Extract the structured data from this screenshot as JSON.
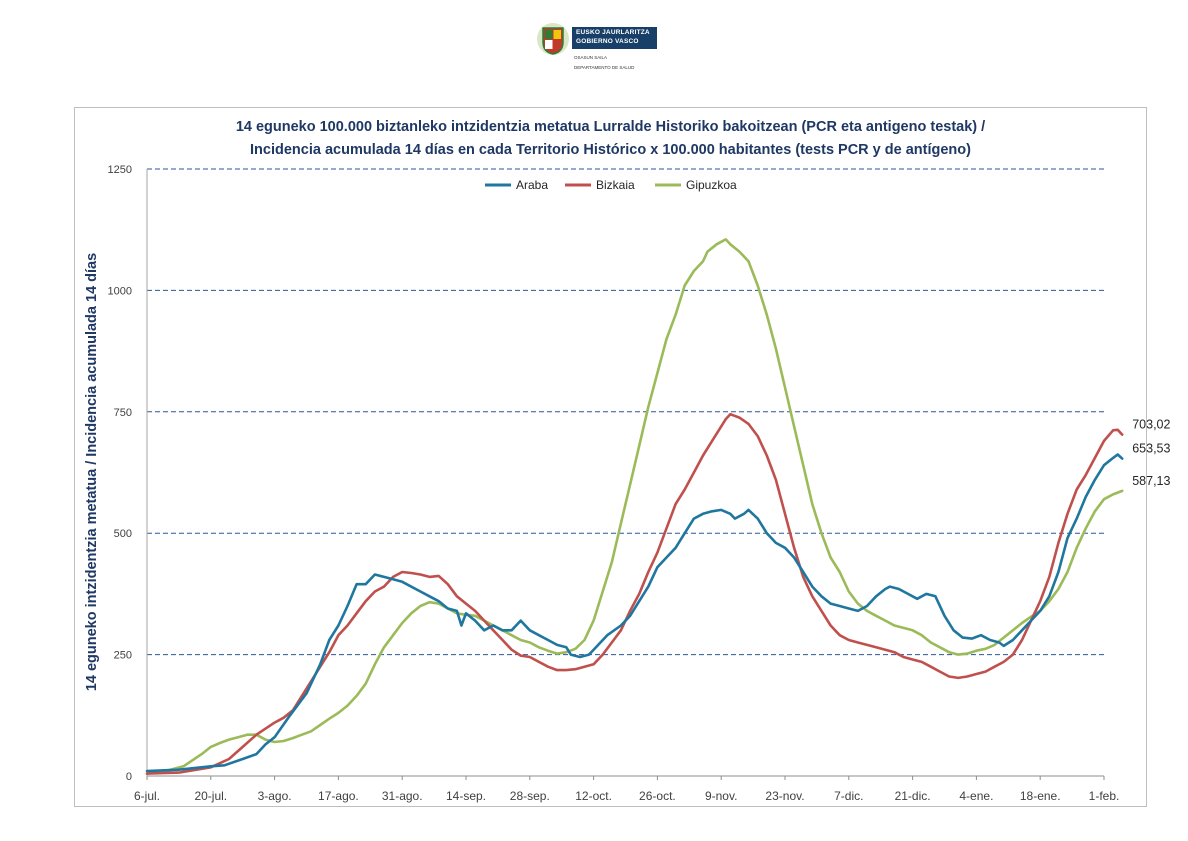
{
  "header": {
    "logo_line1": "EUSKO JAURLARITZA",
    "logo_line2": "GOBIERNO VASCO",
    "dept_line1": "OSASUN SAILA",
    "dept_line2": "DEPARTAMENTO DE SALUD"
  },
  "chart_data": {
    "type": "line",
    "title": "14 eguneko 100.000 biztanleko intzidentzia metatua Lurralde Historiko bakoitzean (PCR eta antigeno  testak) /",
    "subtitle": "Incidencia acumulada  14 días en cada Territorio Histórico x 100.000 habitantes (tests PCR y de antígeno)",
    "ylabel": "14 eguneko intzidentzia metatua / Incidencia acumulada 14 días",
    "xlabel": "",
    "ylim": [
      0,
      1250
    ],
    "yticks": [
      "0",
      "250",
      "500",
      "750",
      "1000",
      "1250"
    ],
    "ytick_values": [
      0,
      250,
      500,
      750,
      1000,
      1250
    ],
    "xlim": [
      0,
      210
    ],
    "xticks": [
      "6-jul.",
      "20-jul.",
      "3-ago.",
      "17-ago.",
      "31-ago.",
      "14-sep.",
      "28-sep.",
      "12-oct.",
      "26-oct.",
      "9-nov.",
      "23-nov.",
      "7-dic.",
      "21-dic.",
      "4-ene.",
      "18-ene.",
      "1-feb."
    ],
    "xtick_days": [
      0,
      14,
      28,
      42,
      56,
      70,
      84,
      98,
      112,
      126,
      140,
      154,
      168,
      182,
      196,
      210
    ],
    "grid": "horizontal dashed",
    "legend_position": "top-center",
    "series": [
      {
        "name": "Araba",
        "color": "#1f77a0",
        "end_label": "653,53",
        "points": [
          [
            0,
            10
          ],
          [
            7,
            13
          ],
          [
            14,
            20
          ],
          [
            17,
            22
          ],
          [
            21,
            35
          ],
          [
            24,
            45
          ],
          [
            26,
            65
          ],
          [
            28,
            80
          ],
          [
            31,
            120
          ],
          [
            35,
            170
          ],
          [
            38,
            230
          ],
          [
            40,
            280
          ],
          [
            42,
            310
          ],
          [
            44,
            350
          ],
          [
            46,
            395
          ],
          [
            48,
            395
          ],
          [
            50,
            415
          ],
          [
            52,
            410
          ],
          [
            54,
            405
          ],
          [
            56,
            400
          ],
          [
            60,
            380
          ],
          [
            62,
            370
          ],
          [
            64,
            360
          ],
          [
            66,
            345
          ],
          [
            68,
            340
          ],
          [
            69,
            310
          ],
          [
            70,
            335
          ],
          [
            72,
            320
          ],
          [
            74,
            300
          ],
          [
            76,
            310
          ],
          [
            78,
            300
          ],
          [
            80,
            300
          ],
          [
            82,
            320
          ],
          [
            84,
            300
          ],
          [
            86,
            290
          ],
          [
            88,
            280
          ],
          [
            90,
            270
          ],
          [
            92,
            265
          ],
          [
            93,
            250
          ],
          [
            95,
            245
          ],
          [
            97,
            250
          ],
          [
            99,
            270
          ],
          [
            101,
            290
          ],
          [
            104,
            310
          ],
          [
            106,
            330
          ],
          [
            108,
            360
          ],
          [
            110,
            390
          ],
          [
            112,
            430
          ],
          [
            114,
            450
          ],
          [
            116,
            470
          ],
          [
            118,
            500
          ],
          [
            120,
            530
          ],
          [
            122,
            540
          ],
          [
            124,
            545
          ],
          [
            126,
            548
          ],
          [
            128,
            540
          ],
          [
            129,
            530
          ],
          [
            131,
            540
          ],
          [
            132,
            548
          ],
          [
            134,
            530
          ],
          [
            136,
            500
          ],
          [
            138,
            480
          ],
          [
            140,
            470
          ],
          [
            142,
            450
          ],
          [
            144,
            420
          ],
          [
            146,
            390
          ],
          [
            148,
            370
          ],
          [
            150,
            355
          ],
          [
            152,
            350
          ],
          [
            154,
            345
          ],
          [
            156,
            340
          ],
          [
            158,
            350
          ],
          [
            160,
            370
          ],
          [
            162,
            385
          ],
          [
            163,
            390
          ],
          [
            165,
            385
          ],
          [
            167,
            375
          ],
          [
            169,
            365
          ],
          [
            171,
            375
          ],
          [
            173,
            370
          ],
          [
            175,
            330
          ],
          [
            177,
            300
          ],
          [
            179,
            285
          ],
          [
            181,
            283
          ],
          [
            183,
            290
          ],
          [
            185,
            280
          ],
          [
            187,
            275
          ],
          [
            188,
            268
          ],
          [
            190,
            280
          ],
          [
            192,
            300
          ],
          [
            194,
            320
          ],
          [
            196,
            340
          ],
          [
            198,
            370
          ],
          [
            200,
            420
          ],
          [
            202,
            490
          ],
          [
            204,
            530
          ],
          [
            206,
            575
          ],
          [
            208,
            610
          ],
          [
            210,
            640
          ],
          [
            212,
            655
          ],
          [
            213,
            662
          ],
          [
            214,
            653.53
          ]
        ]
      },
      {
        "name": "Bizkaia",
        "color": "#c0504d",
        "end_label": "703,02",
        "points": [
          [
            0,
            5
          ],
          [
            7,
            7
          ],
          [
            14,
            18
          ],
          [
            18,
            35
          ],
          [
            21,
            60
          ],
          [
            24,
            85
          ],
          [
            28,
            110
          ],
          [
            30,
            120
          ],
          [
            32,
            135
          ],
          [
            34,
            165
          ],
          [
            36,
            195
          ],
          [
            38,
            225
          ],
          [
            40,
            255
          ],
          [
            42,
            290
          ],
          [
            44,
            310
          ],
          [
            46,
            335
          ],
          [
            48,
            360
          ],
          [
            50,
            380
          ],
          [
            52,
            390
          ],
          [
            54,
            410
          ],
          [
            56,
            420
          ],
          [
            58,
            418
          ],
          [
            60,
            415
          ],
          [
            62,
            410
          ],
          [
            64,
            412
          ],
          [
            66,
            395
          ],
          [
            68,
            370
          ],
          [
            70,
            355
          ],
          [
            72,
            340
          ],
          [
            74,
            320
          ],
          [
            76,
            300
          ],
          [
            78,
            280
          ],
          [
            80,
            260
          ],
          [
            82,
            248
          ],
          [
            84,
            245
          ],
          [
            86,
            235
          ],
          [
            88,
            225
          ],
          [
            90,
            218
          ],
          [
            92,
            218
          ],
          [
            94,
            220
          ],
          [
            96,
            225
          ],
          [
            98,
            230
          ],
          [
            100,
            250
          ],
          [
            102,
            275
          ],
          [
            104,
            300
          ],
          [
            106,
            340
          ],
          [
            108,
            375
          ],
          [
            110,
            420
          ],
          [
            112,
            460
          ],
          [
            114,
            510
          ],
          [
            116,
            560
          ],
          [
            118,
            590
          ],
          [
            120,
            625
          ],
          [
            122,
            660
          ],
          [
            124,
            690
          ],
          [
            126,
            720
          ],
          [
            127,
            735
          ],
          [
            128,
            745
          ],
          [
            130,
            738
          ],
          [
            132,
            725
          ],
          [
            134,
            700
          ],
          [
            136,
            660
          ],
          [
            138,
            610
          ],
          [
            140,
            540
          ],
          [
            142,
            470
          ],
          [
            144,
            410
          ],
          [
            146,
            370
          ],
          [
            148,
            340
          ],
          [
            150,
            310
          ],
          [
            152,
            290
          ],
          [
            154,
            280
          ],
          [
            156,
            275
          ],
          [
            158,
            270
          ],
          [
            160,
            265
          ],
          [
            162,
            260
          ],
          [
            164,
            255
          ],
          [
            166,
            245
          ],
          [
            168,
            240
          ],
          [
            170,
            235
          ],
          [
            172,
            225
          ],
          [
            174,
            215
          ],
          [
            176,
            205
          ],
          [
            178,
            202
          ],
          [
            180,
            205
          ],
          [
            182,
            210
          ],
          [
            184,
            215
          ],
          [
            186,
            225
          ],
          [
            188,
            235
          ],
          [
            190,
            250
          ],
          [
            192,
            280
          ],
          [
            194,
            320
          ],
          [
            196,
            360
          ],
          [
            198,
            410
          ],
          [
            200,
            480
          ],
          [
            202,
            540
          ],
          [
            204,
            590
          ],
          [
            206,
            620
          ],
          [
            208,
            655
          ],
          [
            210,
            690
          ],
          [
            212,
            712
          ],
          [
            213,
            713
          ],
          [
            214,
            703.02
          ]
        ]
      },
      {
        "name": "Gipuzkoa",
        "color": "#9bbb59",
        "end_label": "587,13",
        "points": [
          [
            0,
            5
          ],
          [
            4,
            10
          ],
          [
            8,
            20
          ],
          [
            12,
            45
          ],
          [
            14,
            60
          ],
          [
            16,
            68
          ],
          [
            18,
            75
          ],
          [
            20,
            80
          ],
          [
            22,
            85
          ],
          [
            24,
            85
          ],
          [
            26,
            75
          ],
          [
            28,
            70
          ],
          [
            30,
            72
          ],
          [
            32,
            78
          ],
          [
            34,
            85
          ],
          [
            36,
            92
          ],
          [
            38,
            105
          ],
          [
            40,
            118
          ],
          [
            42,
            130
          ],
          [
            44,
            145
          ],
          [
            46,
            165
          ],
          [
            48,
            190
          ],
          [
            50,
            230
          ],
          [
            52,
            265
          ],
          [
            54,
            290
          ],
          [
            56,
            315
          ],
          [
            58,
            335
          ],
          [
            60,
            350
          ],
          [
            62,
            358
          ],
          [
            64,
            355
          ],
          [
            66,
            345
          ],
          [
            68,
            335
          ],
          [
            70,
            332
          ],
          [
            72,
            330
          ],
          [
            74,
            320
          ],
          [
            76,
            310
          ],
          [
            78,
            300
          ],
          [
            80,
            290
          ],
          [
            82,
            280
          ],
          [
            84,
            275
          ],
          [
            86,
            265
          ],
          [
            88,
            258
          ],
          [
            90,
            252
          ],
          [
            92,
            255
          ],
          [
            94,
            262
          ],
          [
            96,
            280
          ],
          [
            98,
            320
          ],
          [
            100,
            380
          ],
          [
            102,
            440
          ],
          [
            104,
            520
          ],
          [
            106,
            600
          ],
          [
            108,
            680
          ],
          [
            110,
            760
          ],
          [
            112,
            830
          ],
          [
            114,
            900
          ],
          [
            116,
            950
          ],
          [
            118,
            1010
          ],
          [
            120,
            1040
          ],
          [
            122,
            1060
          ],
          [
            123,
            1080
          ],
          [
            125,
            1095
          ],
          [
            126,
            1100
          ],
          [
            127,
            1105
          ],
          [
            128,
            1095
          ],
          [
            130,
            1080
          ],
          [
            132,
            1060
          ],
          [
            134,
            1010
          ],
          [
            136,
            950
          ],
          [
            138,
            880
          ],
          [
            140,
            800
          ],
          [
            142,
            720
          ],
          [
            144,
            640
          ],
          [
            146,
            560
          ],
          [
            148,
            500
          ],
          [
            150,
            450
          ],
          [
            152,
            420
          ],
          [
            154,
            380
          ],
          [
            156,
            355
          ],
          [
            158,
            340
          ],
          [
            160,
            330
          ],
          [
            162,
            320
          ],
          [
            164,
            310
          ],
          [
            166,
            305
          ],
          [
            168,
            300
          ],
          [
            170,
            290
          ],
          [
            172,
            275
          ],
          [
            174,
            265
          ],
          [
            176,
            255
          ],
          [
            178,
            250
          ],
          [
            180,
            252
          ],
          [
            182,
            258
          ],
          [
            184,
            262
          ],
          [
            186,
            270
          ],
          [
            188,
            285
          ],
          [
            190,
            300
          ],
          [
            192,
            315
          ],
          [
            194,
            328
          ],
          [
            196,
            340
          ],
          [
            198,
            360
          ],
          [
            200,
            385
          ],
          [
            202,
            420
          ],
          [
            204,
            470
          ],
          [
            206,
            510
          ],
          [
            208,
            545
          ],
          [
            210,
            570
          ],
          [
            212,
            580
          ],
          [
            214,
            587.13
          ]
        ]
      }
    ]
  }
}
